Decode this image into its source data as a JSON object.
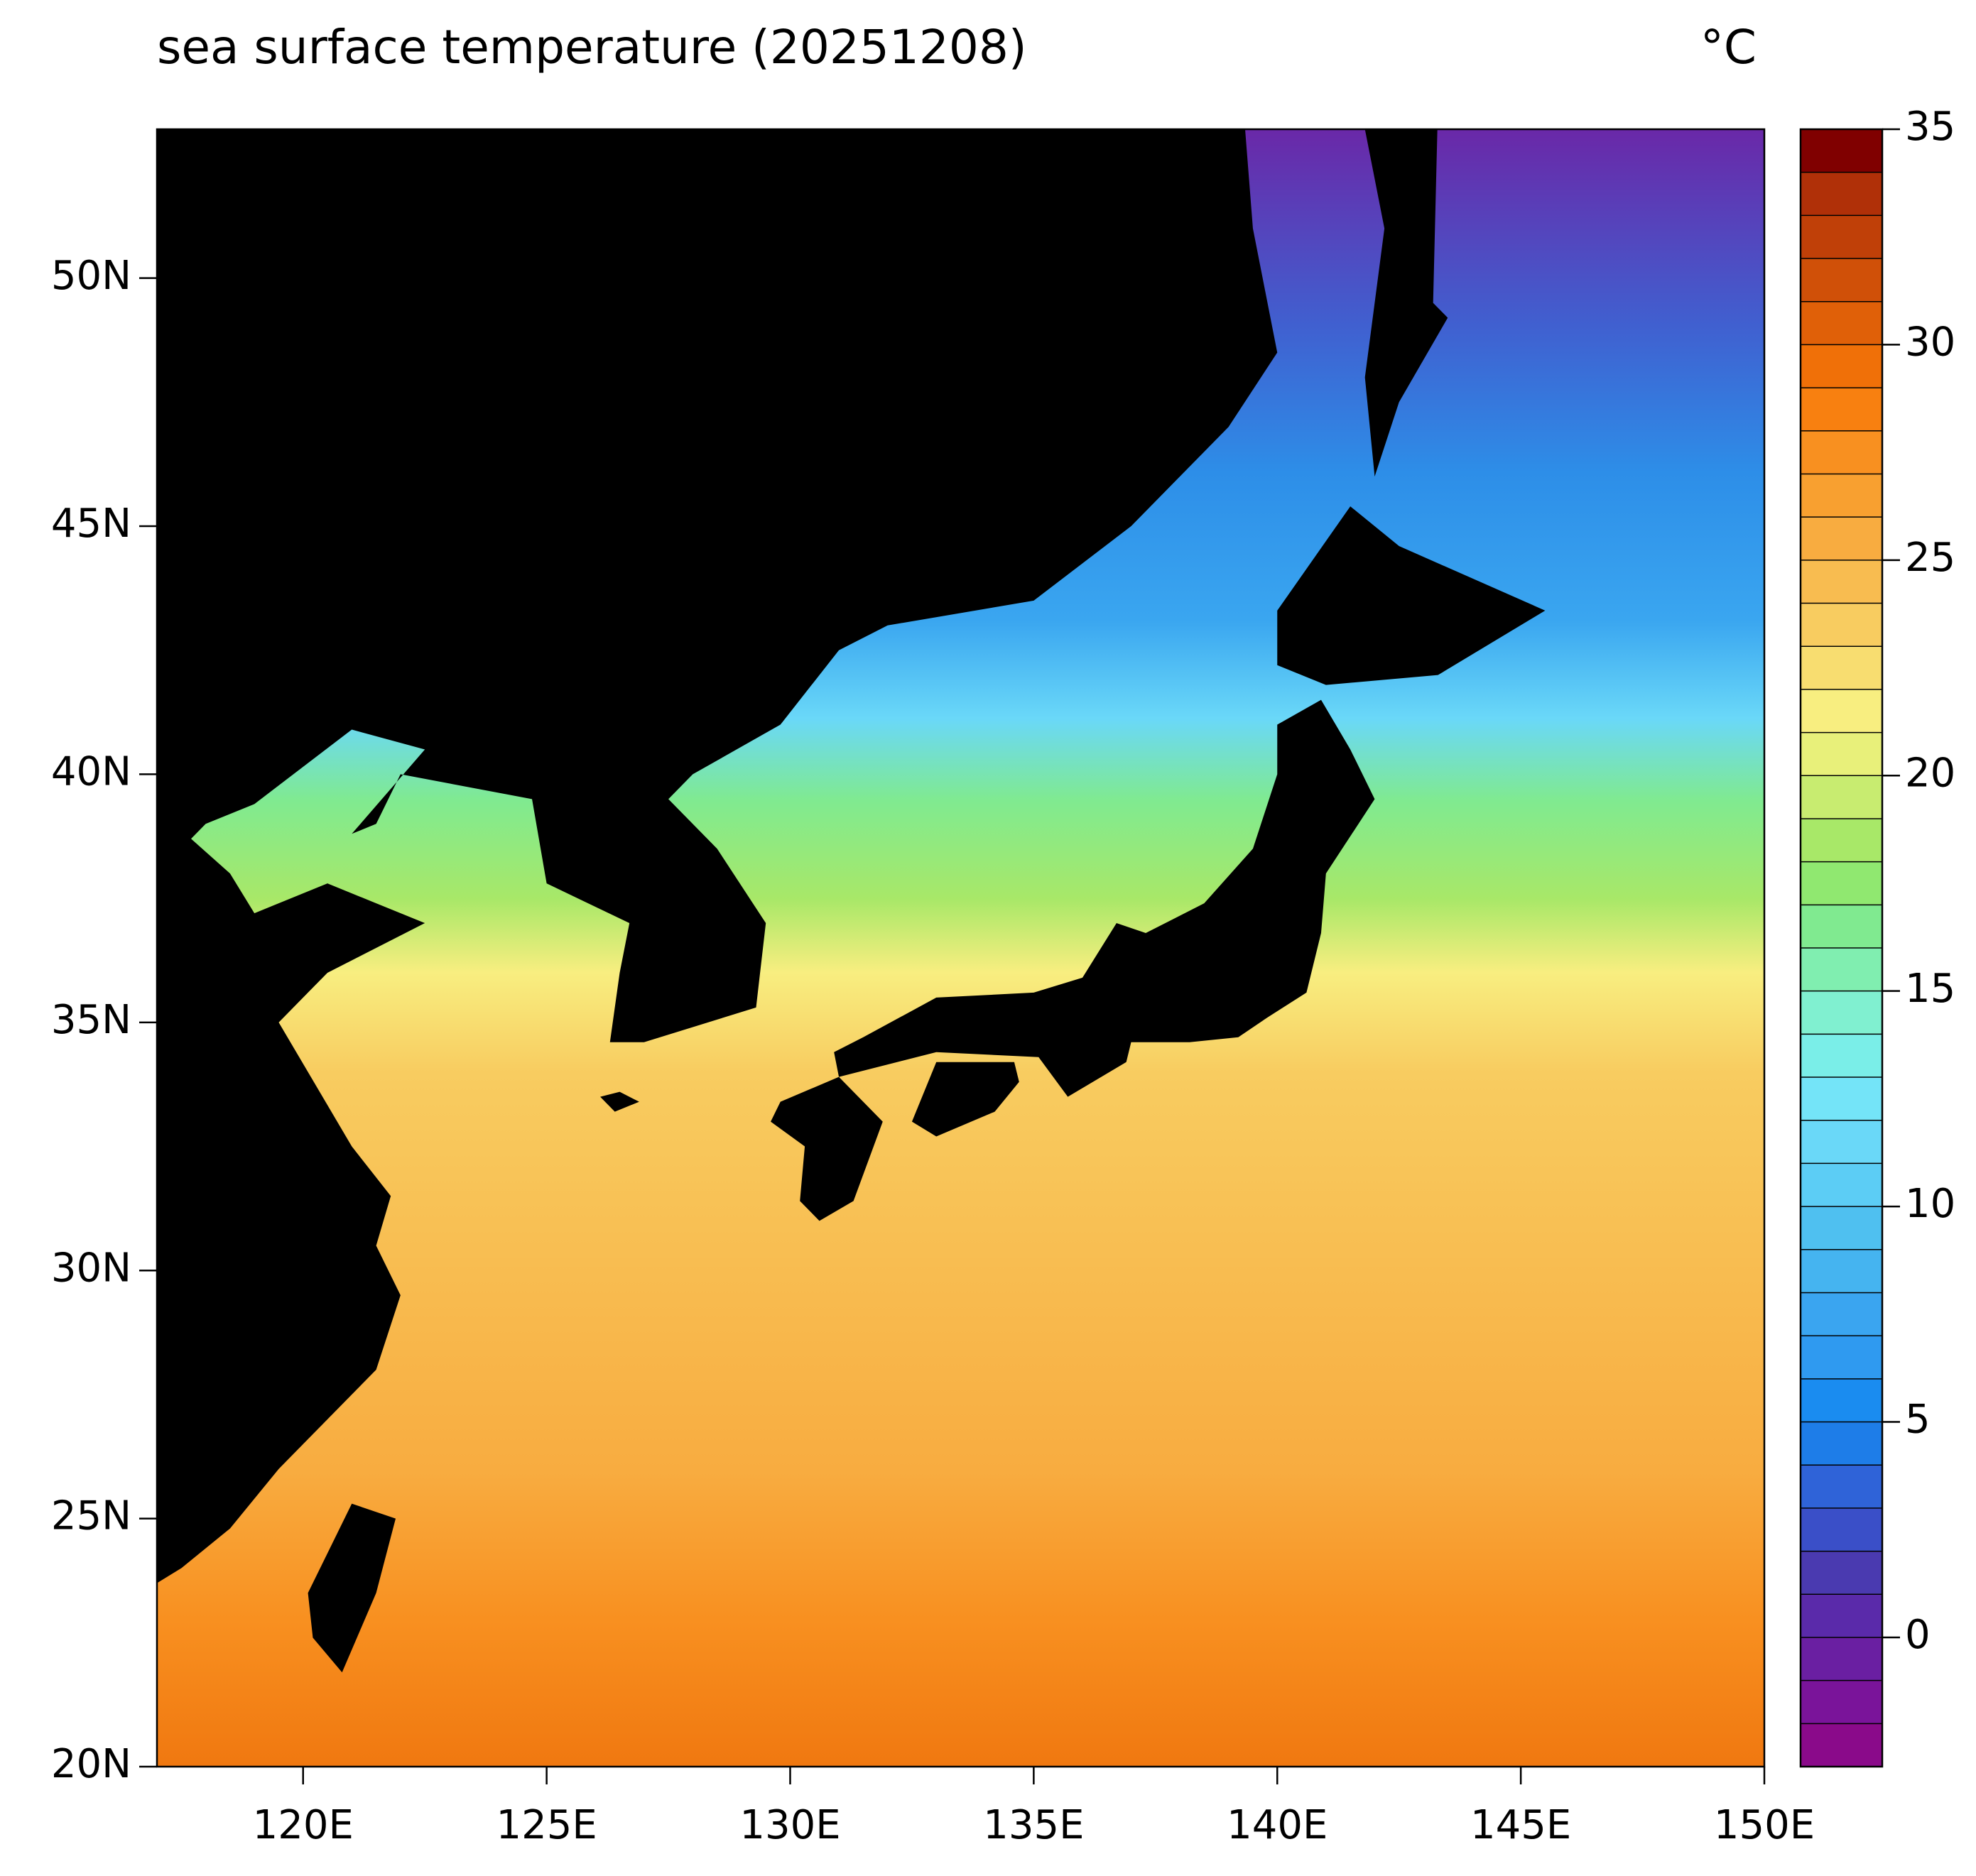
{
  "chart_data": {
    "type": "map",
    "title": "sea surface temperature (20251208)",
    "unit": "°C",
    "xlim": [
      117,
      150
    ],
    "ylim": [
      20,
      53
    ],
    "xticks": [
      {
        "value": 120,
        "label": "120E"
      },
      {
        "value": 125,
        "label": "125E"
      },
      {
        "value": 130,
        "label": "130E"
      },
      {
        "value": 135,
        "label": "135E"
      },
      {
        "value": 140,
        "label": "140E"
      },
      {
        "value": 145,
        "label": "145E"
      },
      {
        "value": 150,
        "label": "150E"
      }
    ],
    "yticks": [
      {
        "value": 20,
        "label": "20N"
      },
      {
        "value": 25,
        "label": "25N"
      },
      {
        "value": 30,
        "label": "30N"
      },
      {
        "value": 35,
        "label": "35N"
      },
      {
        "value": 40,
        "label": "40N"
      },
      {
        "value": 45,
        "label": "45N"
      },
      {
        "value": 50,
        "label": "50N"
      }
    ],
    "colorbar": {
      "clim": [
        -3,
        35
      ],
      "ticks": [
        0,
        5,
        10,
        15,
        20,
        25,
        30,
        35
      ],
      "colors": [
        "#8a0a8a",
        "#7a149a",
        "#6a1fa2",
        "#5a2aaa",
        "#4a3ab0",
        "#3a4fc8",
        "#2f63d8",
        "#1e7de8",
        "#1a8cf0",
        "#2f9af0",
        "#3aa5f0",
        "#45b4f0",
        "#4fc0f0",
        "#5ccdf5",
        "#6ad8f8",
        "#74e4f8",
        "#7aeee8",
        "#80f0d0",
        "#80eeb0",
        "#80ea90",
        "#90e870",
        "#a8e868",
        "#c8ec70",
        "#e8f07a",
        "#f8ee80",
        "#f8dd70",
        "#f8cc60",
        "#f8bc50",
        "#f8ac40",
        "#f8a030",
        "#f89020",
        "#f88010",
        "#f07008",
        "#e06008",
        "#d05008",
        "#c04008",
        "#b03008",
        "#800000"
      ]
    }
  }
}
